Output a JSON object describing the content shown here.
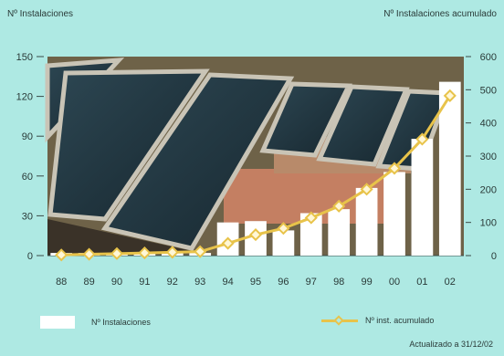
{
  "chart_data": {
    "type": "bar",
    "y_left_label": "Nº Instalaciones",
    "y_right_label": "Nº Instalaciones acumulado",
    "categories": [
      "88",
      "89",
      "90",
      "91",
      "92",
      "93",
      "94",
      "95",
      "96",
      "97",
      "98",
      "99",
      "00",
      "01",
      "02"
    ],
    "ylim_left": [
      0,
      150
    ],
    "ylim_right": [
      0,
      600
    ],
    "yticks_left": [
      "0",
      "30",
      "60",
      "90",
      "120",
      "150"
    ],
    "yticks_right": [
      "0",
      "100",
      "200",
      "300",
      "400",
      "500",
      "600"
    ],
    "series": [
      {
        "name": "Nº Instalaciones",
        "axis": "left",
        "style": "bar",
        "values": [
          2,
          2,
          2,
          2,
          2,
          2,
          25,
          26,
          19,
          32,
          35,
          51,
          63,
          88,
          131
        ]
      },
      {
        "name": "Nº inst. acumulado",
        "axis": "right",
        "style": "line",
        "values": [
          2,
          4,
          6,
          8,
          10,
          12,
          37,
          63,
          82,
          114,
          149,
          200,
          263,
          351,
          482
        ]
      }
    ],
    "legend": [
      {
        "label": "Nº Instalaciones",
        "kind": "bar"
      },
      {
        "label": "Nº inst. acumulado",
        "kind": "line"
      }
    ],
    "legend_position": "bottom",
    "note": "Actualizado a 31/12/02",
    "colors": {
      "bar": "#ffffff",
      "line": "#e8c34a",
      "background": "#aee9e3"
    }
  }
}
